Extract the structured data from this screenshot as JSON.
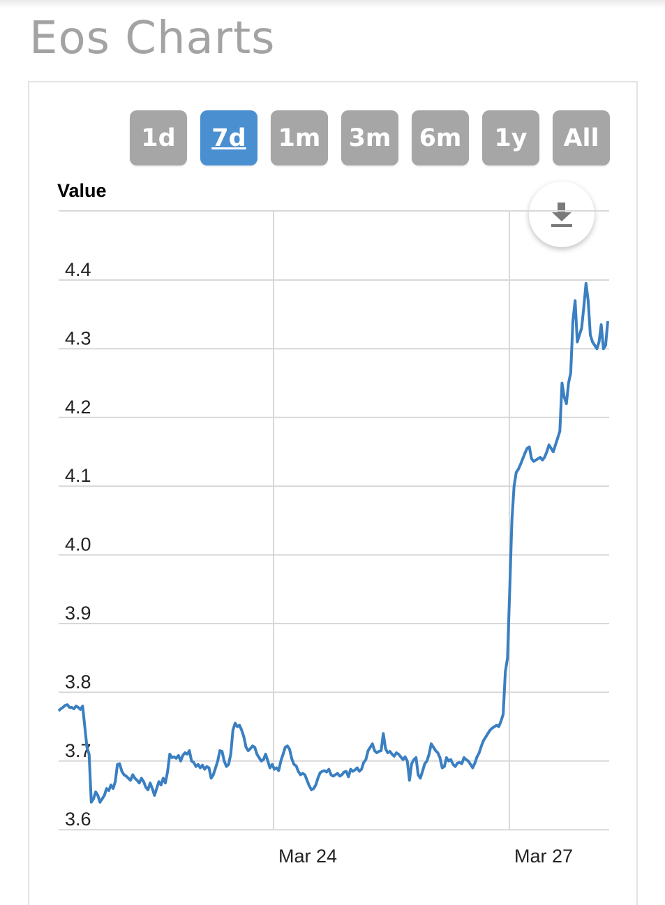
{
  "page_title": "Eos Charts",
  "range_buttons": [
    {
      "label": "1d",
      "active": false
    },
    {
      "label": "7d",
      "active": true
    },
    {
      "label": "1m",
      "active": false
    },
    {
      "label": "3m",
      "active": false
    },
    {
      "label": "6m",
      "active": false
    },
    {
      "label": "1y",
      "active": false
    },
    {
      "label": "All",
      "active": false
    }
  ],
  "download_icon": "download-icon",
  "colors": {
    "line": "#3a7fc1",
    "button_active": "#4a8fd0",
    "button": "#a6a6a6",
    "grid": "#d8d8d8"
  },
  "chart_data": {
    "type": "line",
    "title": "",
    "xlabel": "",
    "ylabel": "Value",
    "ylim": [
      3.6,
      4.5
    ],
    "y_ticks": [
      "4.4",
      "4.3",
      "4.2",
      "4.1",
      "4.0",
      "3.9",
      "3.8",
      "3.7",
      "3.6"
    ],
    "x_ticks": [
      "Mar 24",
      "Mar 27"
    ],
    "grid": true,
    "series": [
      {
        "values": [
          3.773,
          3.776,
          3.778,
          3.781,
          3.782,
          3.778,
          3.778,
          3.776,
          3.78,
          3.778,
          3.775,
          3.78,
          3.75,
          3.72,
          3.71,
          3.64,
          3.645,
          3.655,
          3.65,
          3.64,
          3.645,
          3.65,
          3.66,
          3.657,
          3.665,
          3.66,
          3.67,
          3.695,
          3.696,
          3.685,
          3.68,
          3.678,
          3.675,
          3.672,
          3.68,
          3.675,
          3.672,
          3.668,
          3.675,
          3.67,
          3.662,
          3.658,
          3.668,
          3.66,
          3.65,
          3.66,
          3.67,
          3.665,
          3.675,
          3.668,
          3.685,
          3.71,
          3.705,
          3.706,
          3.704,
          3.708,
          3.7,
          3.708,
          3.712,
          3.71,
          3.715,
          3.7,
          3.698,
          3.692,
          3.695,
          3.69,
          3.694,
          3.688,
          3.692,
          3.69,
          3.675,
          3.68,
          3.69,
          3.7,
          3.715,
          3.714,
          3.7,
          3.692,
          3.695,
          3.71,
          3.745,
          3.755,
          3.75,
          3.752,
          3.745,
          3.735,
          3.72,
          3.715,
          3.718,
          3.722,
          3.72,
          3.71,
          3.705,
          3.7,
          3.702,
          3.71,
          3.7,
          3.69,
          3.695,
          3.688,
          3.69,
          3.686,
          3.7,
          3.71,
          3.72,
          3.722,
          3.717,
          3.703,
          3.695,
          3.693,
          3.685,
          3.68,
          3.682,
          3.68,
          3.672,
          3.664,
          3.658,
          3.66,
          3.665,
          3.675,
          3.683,
          3.685,
          3.686,
          3.684,
          3.688,
          3.68,
          3.678,
          3.68,
          3.682,
          3.678,
          3.68,
          3.684,
          3.685,
          3.677,
          3.688,
          3.685,
          3.687,
          3.69,
          3.685,
          3.688,
          3.698,
          3.702,
          3.715,
          3.72,
          3.725,
          3.715,
          3.712,
          3.714,
          3.715,
          3.74,
          3.718,
          3.712,
          3.714,
          3.71,
          3.707,
          3.712,
          3.71,
          3.706,
          3.702,
          3.706,
          3.7,
          3.672,
          3.696,
          3.702,
          3.705,
          3.68,
          3.675,
          3.685,
          3.696,
          3.7,
          3.71,
          3.725,
          3.72,
          3.715,
          3.712,
          3.705,
          3.69,
          3.692,
          3.705,
          3.7,
          3.702,
          3.695,
          3.692,
          3.697,
          3.698,
          3.696,
          3.705,
          3.702,
          3.7,
          3.695,
          3.69,
          3.697,
          3.706,
          3.712,
          3.722,
          3.73,
          3.735,
          3.74,
          3.745,
          3.748,
          3.75,
          3.752,
          3.75,
          3.758,
          3.768,
          3.83,
          3.85,
          3.95,
          4.05,
          4.1,
          4.12,
          4.125,
          4.132,
          4.14,
          4.148,
          4.155,
          4.157,
          4.14,
          4.136,
          4.138,
          4.14,
          4.142,
          4.138,
          4.142,
          4.15,
          4.16,
          4.155,
          4.15,
          4.16,
          4.17,
          4.18,
          4.25,
          4.23,
          4.22,
          4.25,
          4.265,
          4.34,
          4.37,
          4.31,
          4.32,
          4.33,
          4.36,
          4.395,
          4.37,
          4.32,
          4.31,
          4.305,
          4.3,
          4.31,
          4.335,
          4.3,
          4.305,
          4.34
        ]
      }
    ]
  }
}
